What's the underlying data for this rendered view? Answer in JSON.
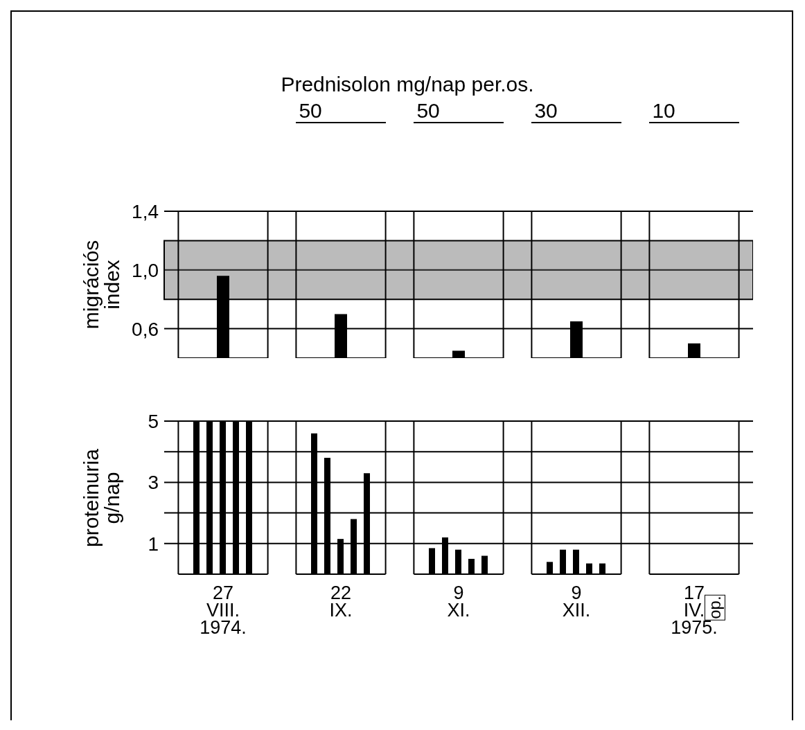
{
  "chart_data": [
    {
      "type": "bar",
      "title": "Prednisolon mg/nap per.os.",
      "ylabel": "migrációs\nindex",
      "categories": [
        null,
        null,
        null,
        null,
        null
      ],
      "values": [
        0.96,
        0.7,
        0.45,
        0.65,
        0.5
      ],
      "color": "#000000",
      "ylim": [
        0.4,
        1.4
      ],
      "yticks": [
        {
          "value": 0.6,
          "label": "0,6"
        },
        {
          "value": 1.0,
          "label": "1,0"
        },
        {
          "value": 1.4,
          "label": "1,4"
        }
      ],
      "tick_labels": "y",
      "bands": [
        {
          "axis": "y",
          "from": 0.8,
          "to": 1.2,
          "color": "#555555"
        }
      ],
      "grid": "y",
      "annotations": [
        "50",
        "50",
        "30",
        "10"
      ]
    },
    {
      "type": "bar",
      "ylabel": "proteinuria\ng/nap",
      "categories": [
        "27\nVIII.\n1974.",
        "22\nIX.",
        "9\nXI.",
        "9\nXII.",
        "17\nIV.\n1975."
      ],
      "ylim": [
        0,
        5
      ],
      "yticks": [
        1,
        {
          "value": 2,
          "label": null
        },
        3,
        {
          "value": 4,
          "label": null
        },
        5
      ],
      "grid": "y",
      "series": [
        {
          "color": "#000000",
          "values": [
            5,
            4.6,
            0.85,
            0.4,
            null
          ]
        },
        {
          "color": "#000000",
          "values": [
            5,
            3.8,
            1.2,
            0.8,
            null
          ]
        },
        {
          "color": "#000000",
          "values": [
            5,
            1.15,
            0.8,
            0.8,
            null
          ]
        },
        {
          "color": "#000000",
          "values": [
            5,
            1.8,
            0.5,
            0.35,
            null
          ]
        },
        {
          "color": "#000000",
          "values": [
            5,
            3.3,
            0.6,
            0.35,
            null
          ]
        }
      ],
      "annotations": [
        "op."
      ]
    }
  ]
}
